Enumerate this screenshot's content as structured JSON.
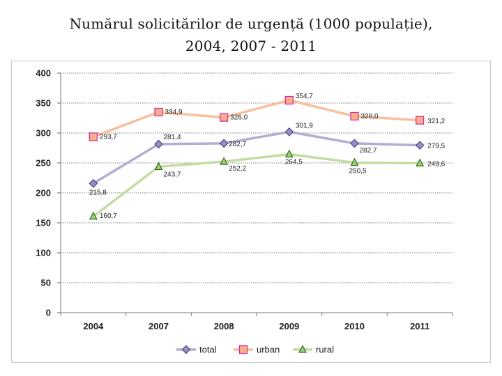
{
  "title": {
    "line1": "Numărul solicitărilor de urgență (1000 populație),",
    "line2": "2004, 2007 - 2011"
  },
  "chart_data": {
    "type": "line",
    "title": "Numărul solicitărilor de urgență (1000 populație), 2004, 2007 - 2011",
    "categories": [
      "2004",
      "2007",
      "2008",
      "2009",
      "2010",
      "2011"
    ],
    "ylim": [
      0,
      400
    ],
    "yticks": [
      0,
      50,
      100,
      150,
      200,
      250,
      300,
      350,
      400
    ],
    "ytick_labels": [
      "0",
      "50",
      "100",
      "150",
      "200",
      "250",
      "300",
      "350",
      "400"
    ],
    "grid": true,
    "legend_position": "bottom",
    "series": [
      {
        "name": "total",
        "marker": "diamond",
        "color": "#b5acd1",
        "marker_fill": "#9a8fc4",
        "marker_stroke": "#4b3f86",
        "values": [
          215.8,
          281.4,
          282.7,
          301.9,
          282.7,
          279.5
        ],
        "labels": [
          "215,8",
          "281,4",
          "282,7",
          "301,9",
          "282,7",
          "279,5"
        ]
      },
      {
        "name": "urban",
        "marker": "square",
        "color": "#f9bf9d",
        "marker_fill": "#f7b08b",
        "marker_stroke": "#d6249c",
        "values": [
          293.7,
          334.9,
          326.0,
          354.7,
          328.0,
          321.2
        ],
        "labels": [
          "293,7",
          "334,9",
          "326,0",
          "354,7",
          "328,0",
          "321,2"
        ]
      },
      {
        "name": "rural",
        "marker": "triangle",
        "color": "#c5dba0",
        "marker_fill": "#9fd07d",
        "marker_stroke": "#2f6b1e",
        "values": [
          160.7,
          243.7,
          252.2,
          264.5,
          250.5,
          249.6
        ],
        "labels": [
          "160,7",
          "243,7",
          "252,2",
          "264,5",
          "250,5",
          "249,6"
        ]
      }
    ]
  }
}
